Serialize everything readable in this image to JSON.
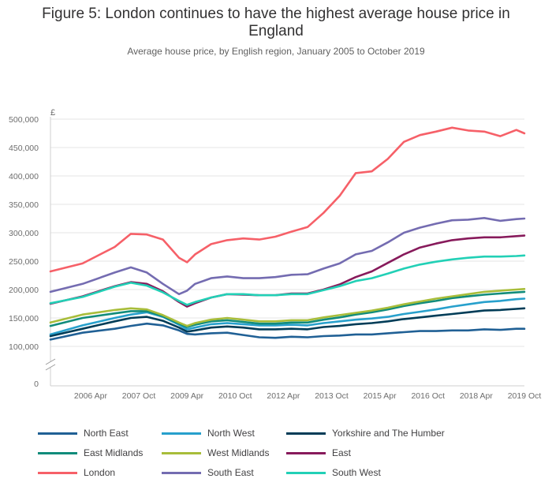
{
  "header": {
    "title_line1": "Figure 5: London continues to have the highest average house price in",
    "title_line2": "England",
    "subtitle": "Average house price, by English region, January 2005 to October 2019"
  },
  "chart_data": {
    "type": "line",
    "title": "Figure 5: London continues to have the highest average house price in England",
    "subtitle": "Average house price, by English region, January 2005 to October 2019",
    "xlabel": "",
    "ylabel": "£",
    "ylim": [
      0,
      500000
    ],
    "axis_break": true,
    "y_ticks": [
      0,
      100000,
      150000,
      200000,
      250000,
      300000,
      350000,
      400000,
      450000,
      500000
    ],
    "y_tick_labels": [
      "0",
      "100,000",
      "150,000",
      "200,000",
      "250,000",
      "300,000",
      "350,000",
      "400,000",
      "450,000",
      "500,000"
    ],
    "x_start": "2005 Jan",
    "x_end": "2019 Oct",
    "x_tick_labels": [
      "2006 Apr",
      "2007 Oct",
      "2009 Apr",
      "2010 Oct",
      "2012 Apr",
      "2013 Oct",
      "2015 Apr",
      "2016 Oct",
      "2018 Apr",
      "2019 Oct"
    ],
    "x_ticks": [
      2006.25,
      2007.75,
      2009.25,
      2010.75,
      2012.25,
      2013.75,
      2015.25,
      2016.75,
      2018.25,
      2019.75
    ],
    "x": [
      2005.0,
      2006.0,
      2007.0,
      2007.5,
      2008.0,
      2008.5,
      2009.0,
      2009.25,
      2009.5,
      2010.0,
      2010.5,
      2011.0,
      2011.5,
      2012.0,
      2012.5,
      2013.0,
      2013.5,
      2014.0,
      2014.5,
      2015.0,
      2015.5,
      2016.0,
      2016.5,
      2017.0,
      2017.5,
      2018.0,
      2018.5,
      2019.0,
      2019.5,
      2019.75
    ],
    "legend_position": "bottom",
    "series": [
      {
        "name": "North East",
        "color": "#206095",
        "values": [
          112000,
          124000,
          131000,
          136000,
          140000,
          137000,
          128000,
          122000,
          121000,
          123000,
          124000,
          120000,
          116000,
          115000,
          117000,
          116000,
          118000,
          119000,
          121000,
          121000,
          123000,
          125000,
          127000,
          127000,
          128000,
          128000,
          130000,
          129000,
          131000,
          131000
        ]
      },
      {
        "name": "North West",
        "color": "#27a0cc",
        "values": [
          121000,
          137000,
          150000,
          156000,
          160000,
          152000,
          138000,
          130000,
          133000,
          139000,
          141000,
          139000,
          137000,
          137000,
          138000,
          137000,
          141000,
          144000,
          147000,
          149000,
          152000,
          157000,
          161000,
          165000,
          170000,
          174000,
          178000,
          180000,
          183000,
          184000
        ]
      },
      {
        "name": "Yorkshire and The Humber",
        "color": "#003c57",
        "values": [
          118000,
          131000,
          144000,
          150000,
          152000,
          145000,
          133000,
          126000,
          128000,
          133000,
          135000,
          133000,
          130000,
          130000,
          131000,
          130000,
          134000,
          136000,
          139000,
          141000,
          144000,
          148000,
          151000,
          154000,
          157000,
          160000,
          163000,
          164000,
          166000,
          167000
        ]
      },
      {
        "name": "East Midlands",
        "color": "#118c7b",
        "values": [
          136000,
          150000,
          158000,
          162000,
          162000,
          153000,
          140000,
          134000,
          138000,
          144000,
          146000,
          143000,
          140000,
          140000,
          142000,
          142000,
          147000,
          151000,
          156000,
          160000,
          165000,
          171000,
          176000,
          180000,
          185000,
          188000,
          191000,
          193000,
          195000,
          196000
        ]
      },
      {
        "name": "West Midlands",
        "color": "#a8bd3a",
        "values": [
          142000,
          156000,
          164000,
          167000,
          165000,
          155000,
          142000,
          136000,
          141000,
          147000,
          150000,
          147000,
          144000,
          144000,
          146000,
          146000,
          151000,
          155000,
          159000,
          163000,
          168000,
          174000,
          179000,
          184000,
          188000,
          192000,
          196000,
          198000,
          200000,
          201000
        ]
      },
      {
        "name": "East",
        "color": "#871a5b",
        "values": [
          175000,
          188000,
          206000,
          213000,
          210000,
          197000,
          178000,
          170000,
          176000,
          186000,
          192000,
          191000,
          190000,
          190000,
          193000,
          193000,
          200000,
          209000,
          222000,
          232000,
          247000,
          262000,
          274000,
          281000,
          287000,
          290000,
          292000,
          292000,
          294000,
          295000
        ]
      },
      {
        "name": "London",
        "color": "#f66068",
        "values": [
          232000,
          246000,
          275000,
          298000,
          297000,
          288000,
          256000,
          248000,
          262000,
          280000,
          287000,
          290000,
          288000,
          293000,
          302000,
          310000,
          335000,
          365000,
          405000,
          408000,
          430000,
          460000,
          472000,
          478000,
          485000,
          480000,
          478000,
          470000,
          481000,
          475000
        ]
      },
      {
        "name": "South East",
        "color": "#746cb1",
        "values": [
          196000,
          210000,
          230000,
          239000,
          230000,
          210000,
          192000,
          198000,
          210000,
          220000,
          223000,
          220000,
          220000,
          222000,
          226000,
          227000,
          237000,
          246000,
          262000,
          268000,
          283000,
          300000,
          309000,
          316000,
          322000,
          323000,
          326000,
          321000,
          324000,
          325000
        ]
      },
      {
        "name": "South West",
        "color": "#22d0b6",
        "values": [
          176000,
          187000,
          205000,
          212000,
          207000,
          195000,
          180000,
          173000,
          178000,
          186000,
          192000,
          192000,
          190000,
          190000,
          192000,
          192000,
          199000,
          206000,
          215000,
          220000,
          228000,
          237000,
          244000,
          249000,
          253000,
          256000,
          258000,
          258000,
          259000,
          260000
        ]
      }
    ]
  }
}
